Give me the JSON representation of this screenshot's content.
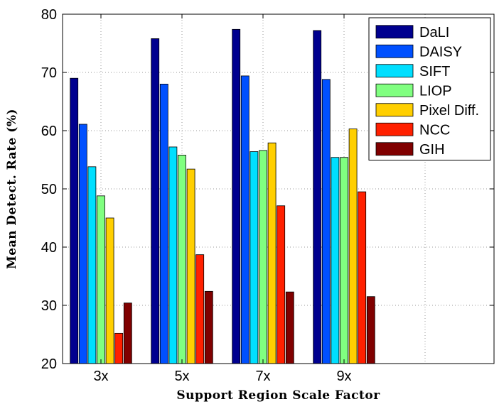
{
  "chart_data": {
    "type": "bar",
    "xlabel": "Support Region Scale Factor",
    "ylabel": "Mean Detect. Rate (%)",
    "categories": [
      "3x",
      "5x",
      "7x",
      "9x"
    ],
    "ylim": [
      20,
      80
    ],
    "yticks": [
      20,
      30,
      40,
      50,
      60,
      70,
      80
    ],
    "grid": true,
    "legend_position": "top-right",
    "series": [
      {
        "name": "DaLI",
        "color": "#00008f",
        "values": [
          69.0,
          75.8,
          77.4,
          77.2
        ]
      },
      {
        "name": "DAISY",
        "color": "#0050ff",
        "values": [
          61.1,
          68.0,
          69.4,
          68.8
        ]
      },
      {
        "name": "SIFT",
        "color": "#00dfff",
        "values": [
          53.8,
          57.2,
          56.4,
          55.4
        ]
      },
      {
        "name": "LIOP",
        "color": "#80ff80",
        "values": [
          48.8,
          55.8,
          56.6,
          55.4
        ]
      },
      {
        "name": "Pixel Diff.",
        "color": "#ffcf00",
        "values": [
          45.0,
          53.4,
          57.9,
          60.3
        ]
      },
      {
        "name": "NCC",
        "color": "#ff2000",
        "values": [
          25.2,
          38.7,
          47.1,
          49.5
        ]
      },
      {
        "name": "GIH",
        "color": "#800000",
        "values": [
          30.4,
          32.4,
          32.3,
          31.5
        ]
      }
    ]
  }
}
